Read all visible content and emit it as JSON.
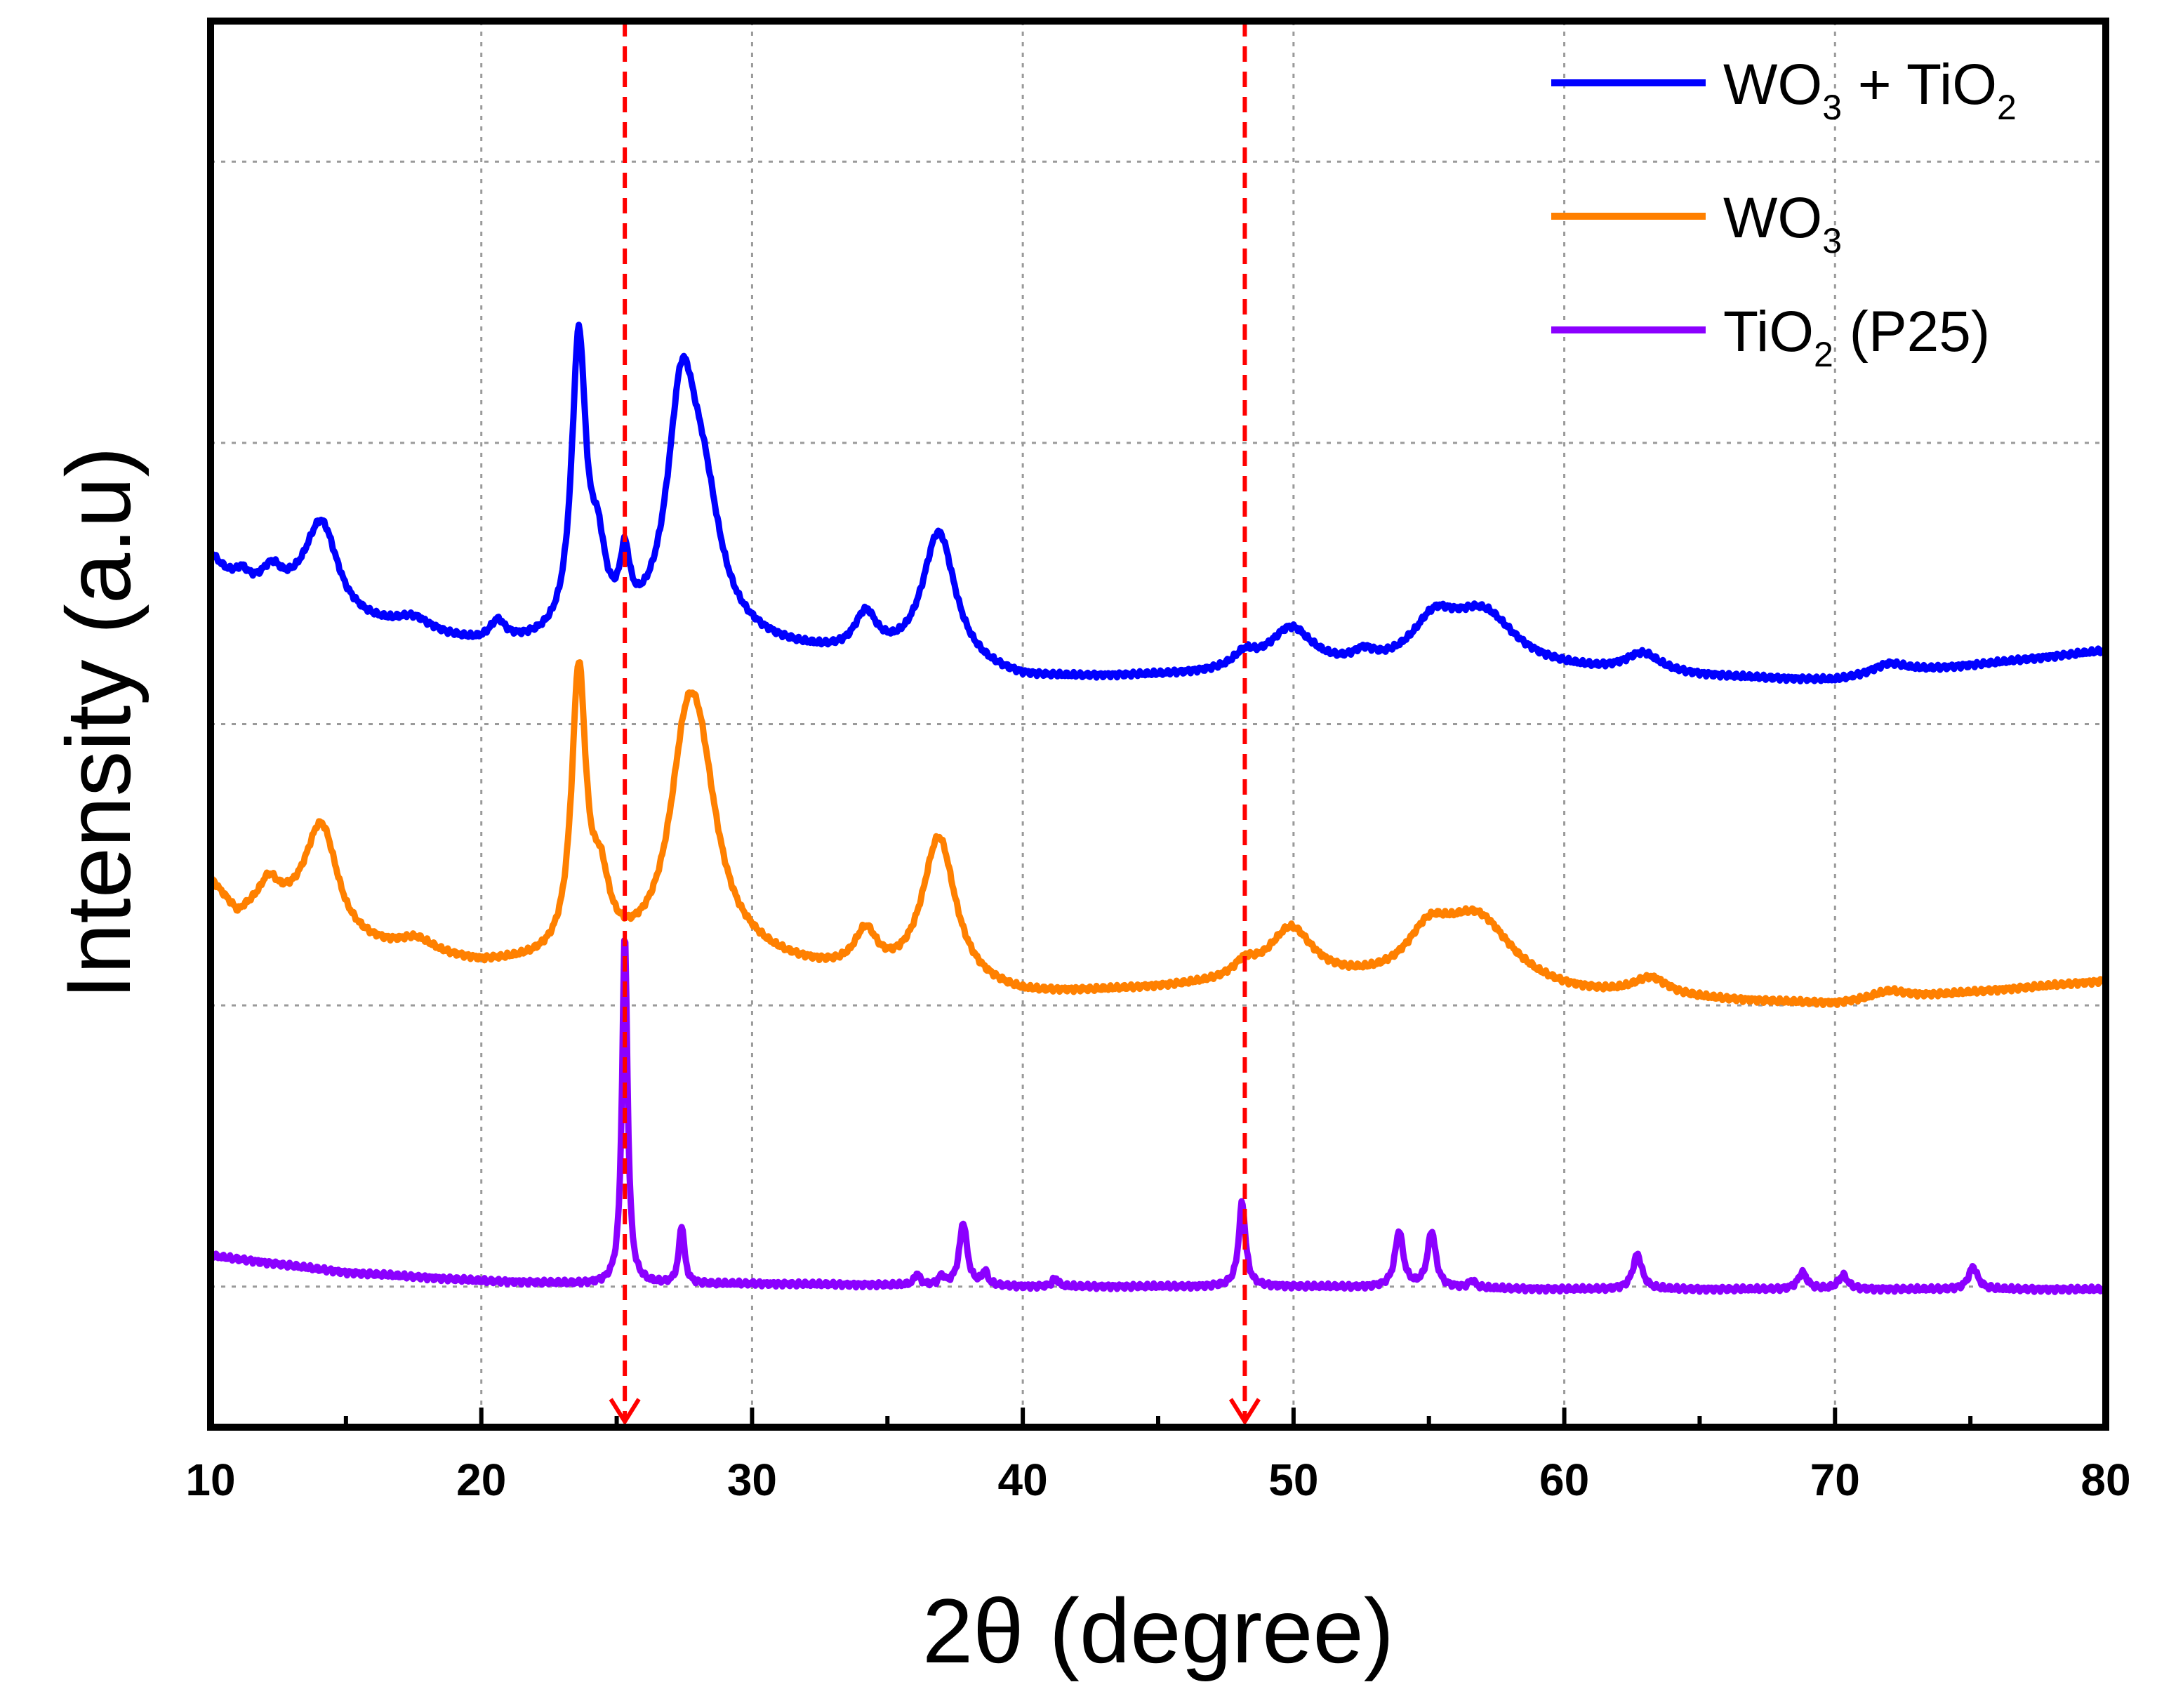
{
  "chart_data": {
    "type": "line",
    "title": "",
    "xlabel": "2θ (degree)",
    "ylabel": "Intensity (a.u)",
    "xlim": [
      10,
      80
    ],
    "ylim": [
      0,
      10
    ],
    "xticks": [
      "10",
      "20",
      "30",
      "40",
      "50",
      "60",
      "70",
      "80"
    ],
    "grid": true,
    "legend_position": "top-right",
    "reference_lines": [
      {
        "x": 25.3,
        "color": "#ff0000",
        "style": "dashed",
        "arrow": "down"
      },
      {
        "x": 48.2,
        "color": "#ff0000",
        "style": "dashed",
        "arrow": "down"
      }
    ],
    "series": [
      {
        "name": "WO3 + TiO2",
        "legend_base": "WO",
        "legend_sub": "3",
        "legend_mid": " + TiO",
        "legend_sub2": "2",
        "legend_tail": "",
        "color": "#0000ff",
        "baseline": 5.28,
        "background": [
          [
            10,
            6.18
          ],
          [
            11,
            5.92
          ],
          [
            12,
            5.95
          ],
          [
            15,
            5.7
          ],
          [
            20,
            5.54
          ],
          [
            30,
            5.52
          ],
          [
            35,
            5.42
          ],
          [
            40,
            5.3
          ],
          [
            50,
            5.35
          ],
          [
            60,
            5.35
          ],
          [
            70,
            5.3
          ],
          [
            80,
            5.52
          ]
        ],
        "peaks": [
          [
            11.1,
            0.15,
            0.35
          ],
          [
            12.3,
            0.12,
            0.35
          ],
          [
            14.1,
            0.65,
            0.75
          ],
          [
            17.5,
            0.1,
            0.8
          ],
          [
            20.6,
            0.14,
            0.35
          ],
          [
            23.6,
            2.1,
            0.32
          ],
          [
            24.3,
            0.5,
            0.35
          ],
          [
            25.3,
            0.45,
            0.22
          ],
          [
            27.4,
            1.6,
            0.65
          ],
          [
            28.2,
            0.85,
            0.8
          ],
          [
            34.2,
            0.28,
            0.5
          ],
          [
            36.9,
            0.96,
            0.75
          ],
          [
            48.2,
            0.1,
            0.5
          ],
          [
            49.9,
            0.3,
            1.0
          ],
          [
            52.6,
            0.08,
            0.5
          ],
          [
            55.2,
            0.3,
            1.0
          ],
          [
            57.0,
            0.4,
            1.5
          ],
          [
            62.9,
            0.14,
            0.8
          ],
          [
            72.0,
            0.08,
            0.8
          ]
        ]
      },
      {
        "name": "WO3",
        "legend_base": "WO",
        "legend_sub": "3",
        "legend_mid": "",
        "legend_sub2": "",
        "legend_tail": "",
        "color": "#ff8000",
        "baseline": 2.97,
        "background": [
          [
            10,
            3.87
          ],
          [
            11,
            3.62
          ],
          [
            12,
            3.72
          ],
          [
            15,
            3.4
          ],
          [
            20,
            3.27
          ],
          [
            30,
            3.28
          ],
          [
            35,
            3.15
          ],
          [
            40,
            3.05
          ],
          [
            50,
            3.15
          ],
          [
            60,
            3.05
          ],
          [
            70,
            3.0
          ],
          [
            80,
            3.17
          ]
        ],
        "peaks": [
          [
            12.2,
            0.12,
            0.35
          ],
          [
            14.1,
            0.78,
            0.75
          ],
          [
            17.6,
            0.1,
            0.8
          ],
          [
            23.6,
            2.0,
            0.32
          ],
          [
            24.4,
            0.45,
            0.4
          ],
          [
            27.5,
            0.8,
            0.7
          ],
          [
            28.0,
            1.3,
            0.9
          ],
          [
            34.2,
            0.28,
            0.5
          ],
          [
            36.9,
            1.05,
            0.75
          ],
          [
            48.2,
            0.1,
            0.5
          ],
          [
            49.9,
            0.36,
            1.0
          ],
          [
            55.0,
            0.3,
            1.0
          ],
          [
            56.8,
            0.5,
            1.6
          ],
          [
            63.2,
            0.13,
            0.8
          ],
          [
            72.0,
            0.06,
            0.8
          ]
        ]
      },
      {
        "name": "TiO2 (P25)",
        "legend_base": "TiO",
        "legend_sub": "2",
        "legend_mid": "",
        "legend_sub2": "",
        "legend_tail": " (P25)",
        "color": "#8b00ff",
        "baseline": 1.0,
        "background": [
          [
            10,
            1.22
          ],
          [
            15,
            1.1
          ],
          [
            20,
            1.04
          ],
          [
            25,
            1.01
          ],
          [
            30,
            1.02
          ],
          [
            40,
            1.0
          ],
          [
            50,
            1.0
          ],
          [
            60,
            0.98
          ],
          [
            70,
            0.98
          ],
          [
            80,
            0.98
          ]
        ],
        "peaks": [
          [
            25.3,
            2.5,
            0.12
          ],
          [
            27.4,
            0.42,
            0.12
          ],
          [
            36.1,
            0.08,
            0.12
          ],
          [
            37.0,
            0.06,
            0.12
          ],
          [
            37.8,
            0.45,
            0.17
          ],
          [
            38.6,
            0.1,
            0.12
          ],
          [
            41.2,
            0.06,
            0.12
          ],
          [
            48.1,
            0.6,
            0.15
          ],
          [
            53.9,
            0.4,
            0.18
          ],
          [
            55.1,
            0.4,
            0.18
          ],
          [
            56.6,
            0.05,
            0.15
          ],
          [
            62.7,
            0.25,
            0.2
          ],
          [
            68.8,
            0.12,
            0.2
          ],
          [
            70.3,
            0.1,
            0.2
          ],
          [
            75.1,
            0.16,
            0.2
          ]
        ]
      }
    ]
  }
}
